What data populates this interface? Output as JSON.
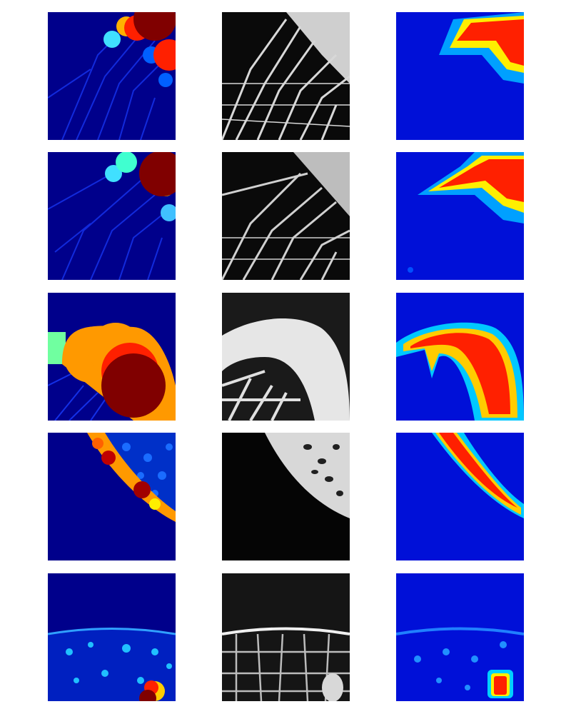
{
  "figure": {
    "layout": {
      "rows": 5,
      "columns": 3
    },
    "columns": [
      {
        "role": "colormap-overlay",
        "colormap": "jet"
      },
      {
        "role": "grayscale-micro-ct",
        "colormap": "gray"
      },
      {
        "role": "colormap-prediction",
        "colormap": "jet"
      }
    ],
    "palette": {
      "jet_dark_blue": "#00008b",
      "jet_blue": "#0000ff",
      "jet_cyan": "#00ffff",
      "jet_yellow": "#ffff00",
      "jet_orange": "#ff9900",
      "jet_red": "#ff2000",
      "jet_dark_red": "#800000",
      "gray_black": "#0a0a0a",
      "gray_white": "#f0f0f0"
    },
    "rows": [
      {
        "index": 1,
        "content": "trabecular-bone-near-top-right-cortex"
      },
      {
        "index": 2,
        "content": "trabecular-bone-near-top-right-cortex"
      },
      {
        "index": 3,
        "content": "thick-cortical-shell-with-trabeculae-below"
      },
      {
        "index": 4,
        "content": "diagonal-cortical-band-top-right"
      },
      {
        "index": 5,
        "content": "horizontal-cortical-edge-with-trabeculae-below"
      }
    ]
  }
}
